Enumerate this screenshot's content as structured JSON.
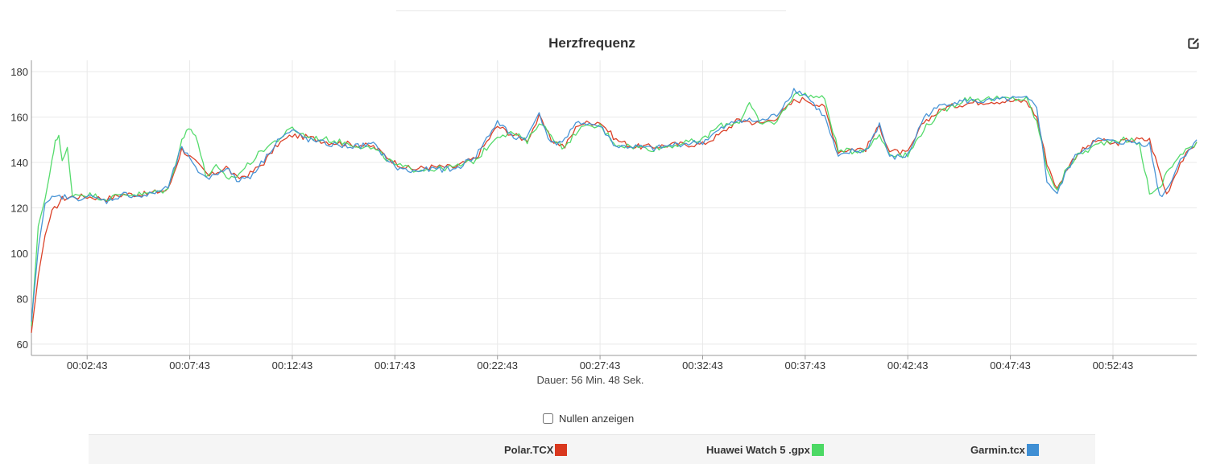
{
  "chart_data": {
    "type": "line",
    "title": "Herzfrequenz",
    "xlabel": "Dauer: 56 Min. 48 Sek.",
    "ylabel": "",
    "xlim": [
      "00:00:00",
      "00:56:48"
    ],
    "ylim": [
      55,
      185
    ],
    "y_ticks": [
      60,
      80,
      100,
      120,
      140,
      160,
      180
    ],
    "x_ticks": [
      "00:02:43",
      "00:07:43",
      "00:12:43",
      "00:17:43",
      "00:22:43",
      "00:27:43",
      "00:32:43",
      "00:37:43",
      "00:42:43",
      "00:47:43",
      "00:52:43"
    ],
    "grid": true,
    "legend_position": "bottom",
    "series": [
      {
        "name": "Polar.TCX",
        "color": "#d9381e",
        "x": [
          "00:00:00",
          "00:00:20",
          "00:00:40",
          "00:01:00",
          "00:01:30",
          "00:02:00",
          "00:02:43",
          "00:03:40",
          "00:04:30",
          "00:05:30",
          "00:06:40",
          "00:07:20",
          "00:08:00",
          "00:08:40",
          "00:09:30",
          "00:10:00",
          "00:10:40",
          "00:11:20",
          "00:12:00",
          "00:12:43",
          "00:13:30",
          "00:14:30",
          "00:15:40",
          "00:16:40",
          "00:17:43",
          "00:18:30",
          "00:19:30",
          "00:20:40",
          "00:21:40",
          "00:22:43",
          "00:23:30",
          "00:24:10",
          "00:24:45",
          "00:25:20",
          "00:26:00",
          "00:26:40",
          "00:27:43",
          "00:28:30",
          "00:29:20",
          "00:30:20",
          "00:31:30",
          "00:32:43",
          "00:33:30",
          "00:34:30",
          "00:35:30",
          "00:36:20",
          "00:37:10",
          "00:37:43",
          "00:38:40",
          "00:39:20",
          "00:40:00",
          "00:40:40",
          "00:41:20",
          "00:41:50",
          "00:42:43",
          "00:43:30",
          "00:44:30",
          "00:45:30",
          "00:46:40",
          "00:47:43",
          "00:48:30",
          "00:49:00",
          "00:49:30",
          "00:50:00",
          "00:50:30",
          "00:51:00",
          "00:52:00",
          "00:52:43",
          "00:53:30",
          "00:54:30",
          "00:55:20",
          "00:56:00",
          "00:56:48"
        ],
        "values": [
          65,
          90,
          108,
          118,
          124,
          125,
          125,
          124,
          126,
          126,
          128,
          146,
          140,
          134,
          138,
          133,
          135,
          140,
          148,
          152,
          151,
          149,
          148,
          147,
          140,
          137,
          138,
          138,
          142,
          156,
          152,
          150,
          160,
          150,
          147,
          157,
          158,
          150,
          147,
          147,
          148,
          148,
          152,
          159,
          157,
          160,
          167,
          168,
          164,
          145,
          146,
          146,
          156,
          145,
          144,
          158,
          164,
          166,
          167,
          167,
          167,
          160,
          140,
          128,
          138,
          144,
          150,
          148,
          150,
          150,
          126,
          140,
          149
        ]
      },
      {
        "name": "Huawei Watch 5 .gpx",
        "color": "#4cd964",
        "x": [
          "00:00:00",
          "00:00:20",
          "00:00:40",
          "00:01:00",
          "00:01:10",
          "00:01:20",
          "00:01:30",
          "00:01:45",
          "00:02:00",
          "00:02:43",
          "00:03:40",
          "00:04:30",
          "00:05:30",
          "00:06:40",
          "00:07:20",
          "00:07:40",
          "00:08:00",
          "00:08:30",
          "00:09:00",
          "00:09:30",
          "00:10:00",
          "00:10:40",
          "00:11:20",
          "00:12:00",
          "00:12:43",
          "00:13:30",
          "00:14:30",
          "00:15:40",
          "00:16:40",
          "00:17:43",
          "00:18:30",
          "00:19:30",
          "00:20:40",
          "00:21:40",
          "00:22:43",
          "00:23:30",
          "00:24:10",
          "00:24:45",
          "00:25:20",
          "00:26:00",
          "00:26:40",
          "00:27:43",
          "00:28:30",
          "00:29:20",
          "00:30:20",
          "00:31:30",
          "00:32:43",
          "00:33:30",
          "00:34:30",
          "00:35:00",
          "00:35:30",
          "00:36:20",
          "00:37:10",
          "00:37:43",
          "00:38:40",
          "00:39:20",
          "00:40:00",
          "00:40:40",
          "00:41:20",
          "00:41:50",
          "00:42:43",
          "00:43:30",
          "00:44:30",
          "00:45:30",
          "00:46:40",
          "00:47:43",
          "00:48:30",
          "00:49:00",
          "00:49:30",
          "00:50:00",
          "00:50:30",
          "00:51:00",
          "00:52:00",
          "00:52:43",
          "00:53:30",
          "00:54:00",
          "00:54:30",
          "00:55:00",
          "00:55:20",
          "00:56:00",
          "00:56:48"
        ],
        "values": [
          68,
          112,
          124,
          140,
          150,
          152,
          140,
          146,
          126,
          126,
          124,
          126,
          126,
          128,
          150,
          155,
          153,
          134,
          138,
          133,
          134,
          140,
          146,
          150,
          155,
          151,
          150,
          148,
          146,
          139,
          137,
          137,
          138,
          141,
          152,
          153,
          149,
          158,
          152,
          146,
          155,
          156,
          148,
          147,
          146,
          148,
          150,
          156,
          158,
          166,
          157,
          158,
          170,
          170,
          168,
          145,
          145,
          146,
          152,
          144,
          143,
          155,
          163,
          168,
          168,
          168,
          168,
          158,
          138,
          127,
          138,
          143,
          148,
          150,
          150,
          148,
          127,
          128,
          136,
          143,
          149
        ]
      },
      {
        "name": "Garmin.tcx",
        "color": "#3f8fd4",
        "x": [
          "00:00:00",
          "00:00:20",
          "00:00:40",
          "00:01:00",
          "00:01:30",
          "00:02:00",
          "00:02:43",
          "00:03:40",
          "00:04:30",
          "00:05:30",
          "00:06:40",
          "00:07:20",
          "00:08:00",
          "00:08:40",
          "00:09:30",
          "00:10:00",
          "00:10:40",
          "00:11:20",
          "00:12:00",
          "00:12:43",
          "00:13:30",
          "00:14:30",
          "00:15:40",
          "00:16:40",
          "00:17:43",
          "00:18:30",
          "00:19:30",
          "00:20:40",
          "00:21:40",
          "00:22:43",
          "00:23:30",
          "00:24:10",
          "00:24:45",
          "00:25:20",
          "00:26:00",
          "00:26:40",
          "00:27:43",
          "00:28:30",
          "00:29:20",
          "00:30:20",
          "00:31:30",
          "00:32:43",
          "00:33:30",
          "00:34:30",
          "00:35:30",
          "00:36:20",
          "00:37:10",
          "00:37:43",
          "00:38:40",
          "00:39:20",
          "00:40:00",
          "00:40:40",
          "00:41:20",
          "00:41:50",
          "00:42:43",
          "00:43:30",
          "00:44:30",
          "00:45:30",
          "00:46:40",
          "00:47:43",
          "00:48:30",
          "00:49:00",
          "00:49:30",
          "00:50:00",
          "00:50:30",
          "00:51:00",
          "00:52:00",
          "00:52:43",
          "00:53:30",
          "00:54:30",
          "00:55:00",
          "00:55:20",
          "00:56:00",
          "00:56:48"
        ],
        "values": [
          70,
          102,
          122,
          124,
          125,
          124,
          125,
          123,
          126,
          125,
          129,
          147,
          137,
          133,
          138,
          132,
          134,
          141,
          150,
          154,
          150,
          148,
          147,
          148,
          138,
          136,
          137,
          137,
          143,
          158,
          151,
          151,
          162,
          148,
          150,
          158,
          156,
          147,
          147,
          146,
          148,
          149,
          154,
          159,
          158,
          161,
          172,
          170,
          160,
          142,
          145,
          145,
          157,
          142,
          143,
          160,
          166,
          167,
          167,
          168,
          168,
          165,
          132,
          126,
          137,
          144,
          150,
          149,
          149,
          148,
          125,
          128,
          141,
          150
        ]
      }
    ]
  },
  "controls": {
    "zero_toggle_label": "Nullen anzeigen",
    "zero_toggle_checked": false
  },
  "icons": {
    "edit": "edit-icon"
  },
  "colors": {
    "grid": "#e9e9e9",
    "axis": "#999999",
    "legend_background": "#f5f5f5"
  }
}
